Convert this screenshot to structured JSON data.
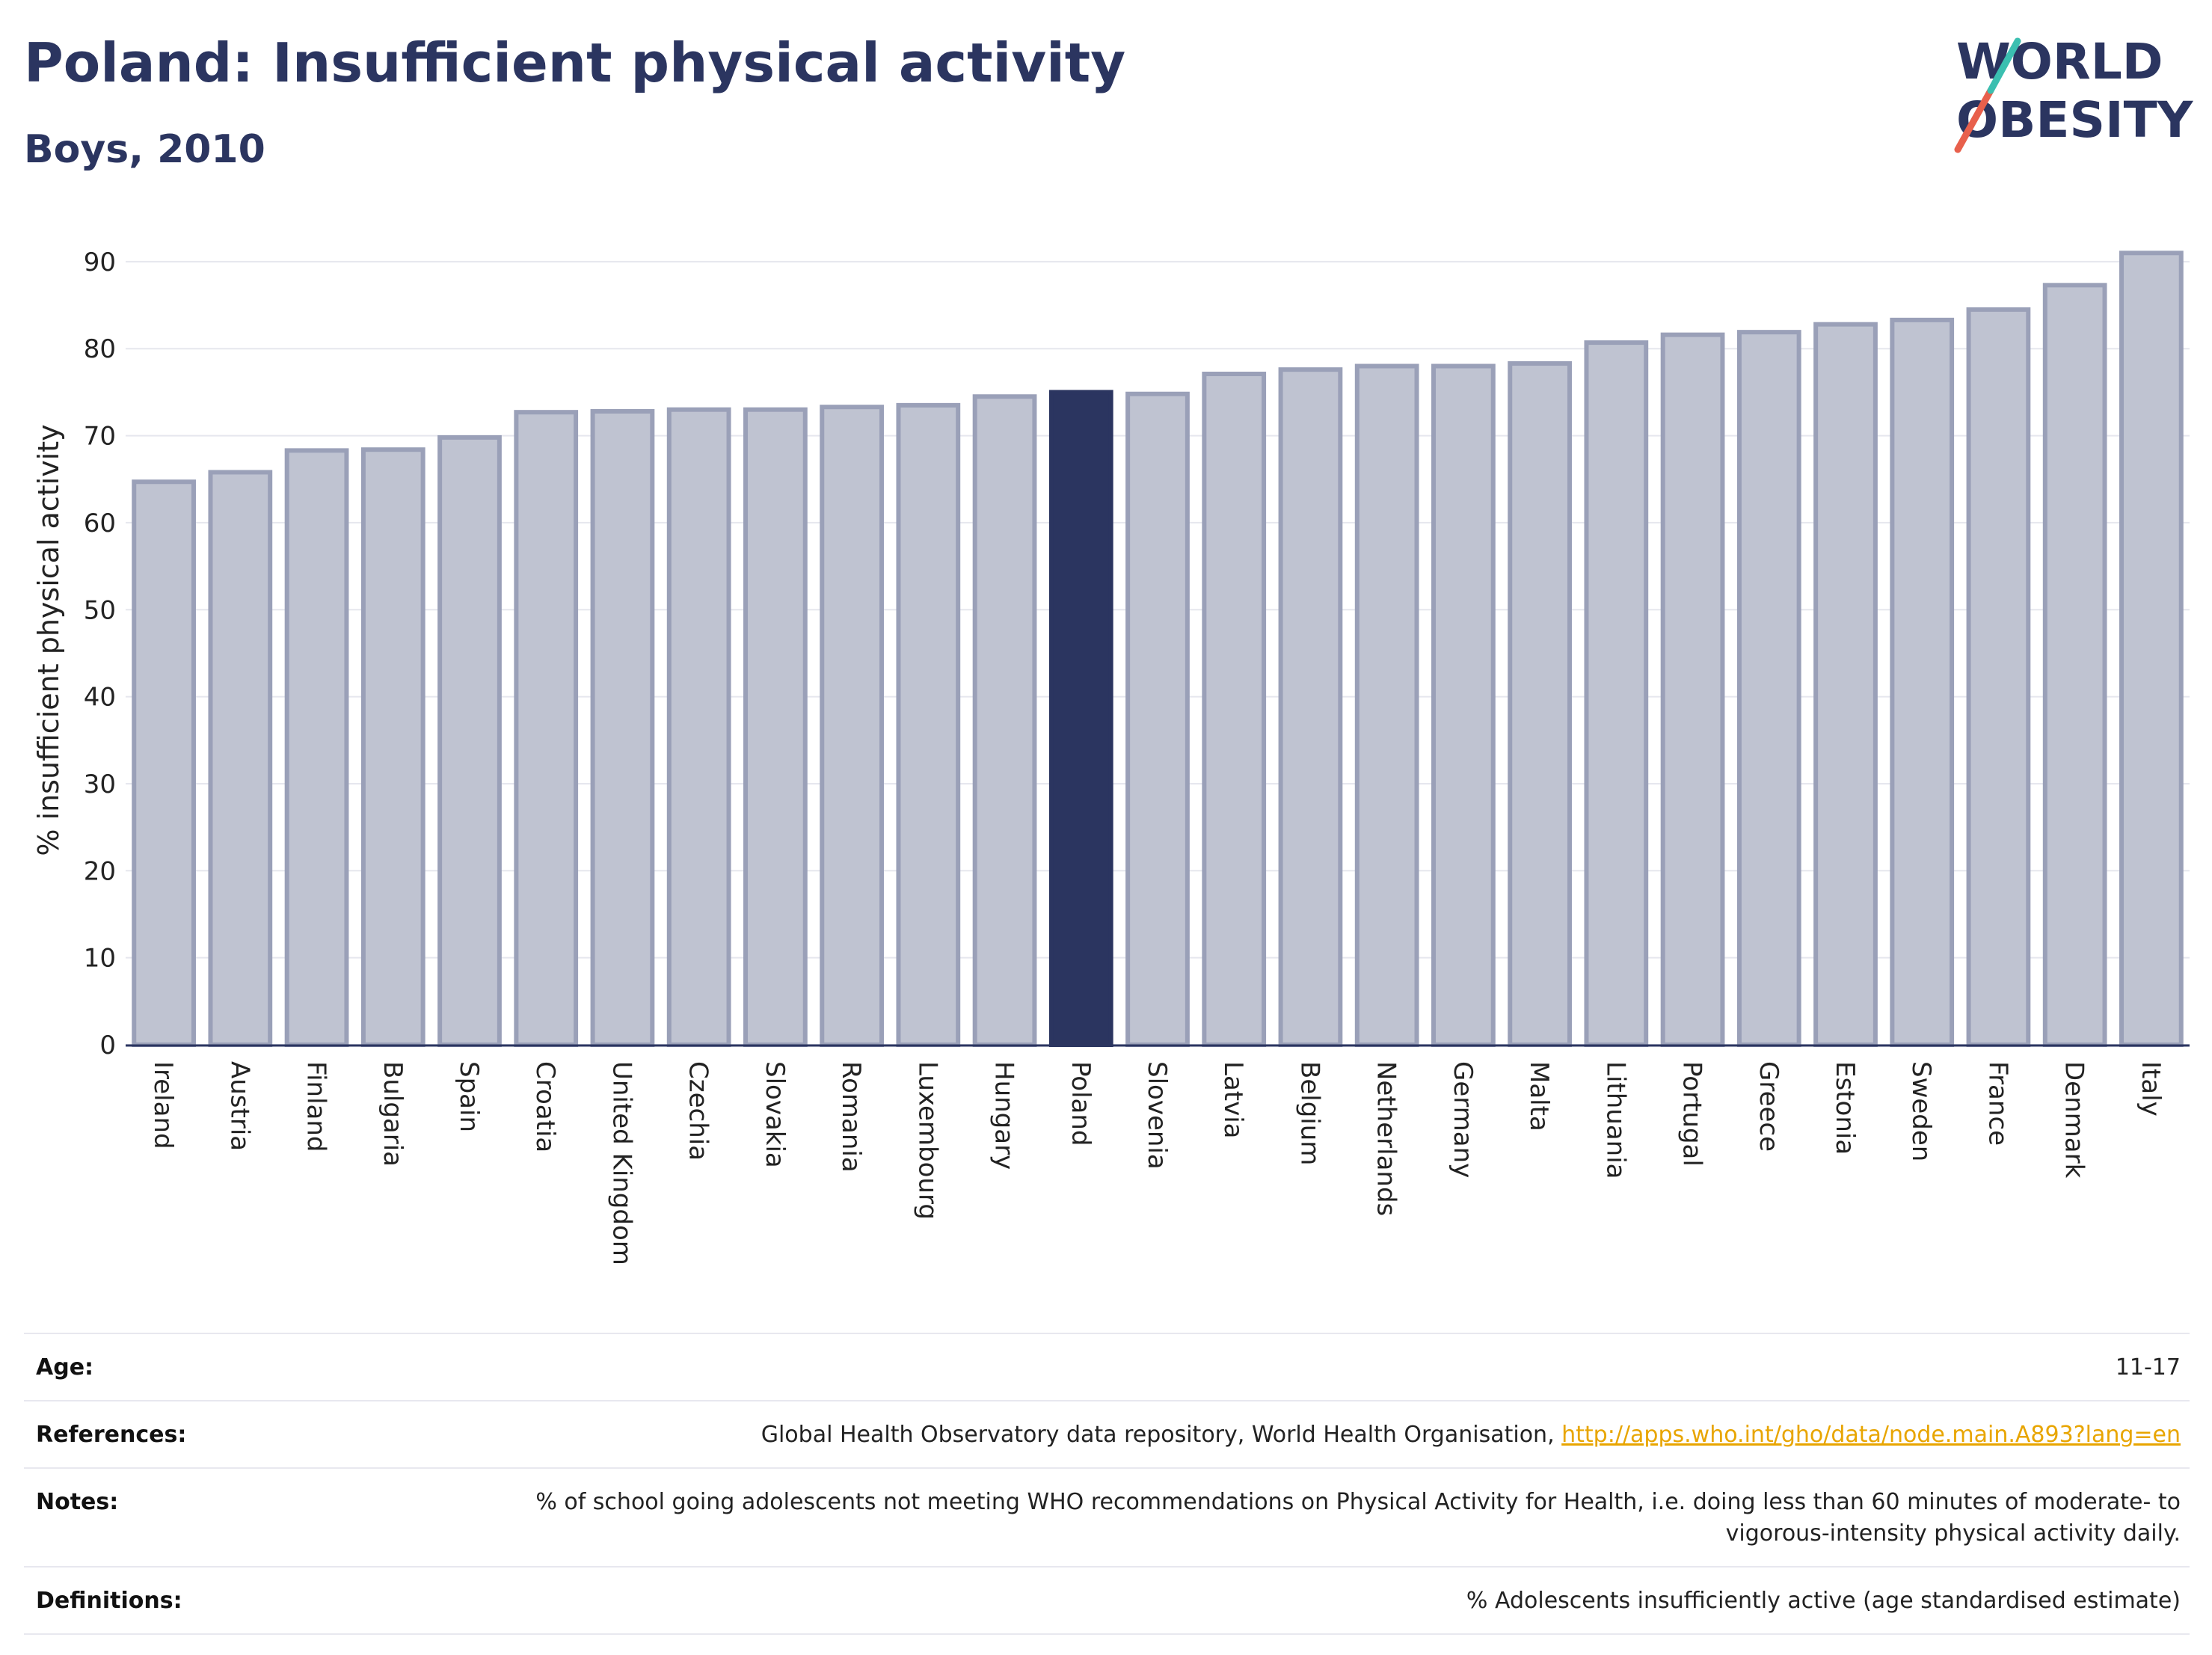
{
  "header": {
    "title": "Poland: Insufficient physical activity",
    "subtitle": "Boys, 2010"
  },
  "logo": {
    "line1": "WORLD",
    "line2": "OBESITY",
    "colors": {
      "text": "#2b3560",
      "slash_red": "#e8604c",
      "slash_teal": "#3bbfb0"
    }
  },
  "chart_data": {
    "type": "bar",
    "ylabel": "% insufficient physical activity",
    "xlabel": "",
    "ylim": [
      0,
      93
    ],
    "yticks": [
      0,
      10,
      20,
      30,
      40,
      50,
      60,
      70,
      80,
      90
    ],
    "grid": true,
    "highlight": "Poland",
    "colors": {
      "bar": "#bfc3d1",
      "bar_edge": "#9aa0b8",
      "highlight": "#2b3560"
    },
    "categories": [
      "Ireland",
      "Austria",
      "Finland",
      "Bulgaria",
      "Spain",
      "Croatia",
      "United Kingdom",
      "Czechia",
      "Slovakia",
      "Romania",
      "Luxembourg",
      "Hungary",
      "Poland",
      "Slovenia",
      "Latvia",
      "Belgium",
      "Netherlands",
      "Germany",
      "Malta",
      "Lithuania",
      "Portugal",
      "Greece",
      "Estonia",
      "Sweden",
      "France",
      "Denmark",
      "Italy"
    ],
    "values": [
      64.7,
      65.8,
      68.3,
      68.4,
      69.8,
      72.7,
      72.8,
      73.0,
      73.0,
      73.3,
      73.5,
      74.5,
      75.0,
      74.8,
      77.1,
      77.6,
      78.0,
      78.0,
      78.3,
      80.7,
      81.6,
      81.9,
      82.8,
      83.3,
      84.5,
      87.3,
      91.0
    ]
  },
  "info": {
    "age_label": "Age:",
    "age_value": "11-17",
    "references_label": "References:",
    "references_text": "Global Health Observatory data repository, World Health Organisation, ",
    "references_link": "http://apps.who.int/gho/data/node.main.A893?lang=en",
    "notes_label": "Notes:",
    "notes_text": "% of school going adolescents not meeting WHO recommendations on Physical Activity for Health, i.e. doing less than 60 minutes of moderate- to vigorous-intensity physical activity daily.",
    "definitions_label": "Definitions:",
    "definitions_text": "% Adolescents insufficiently active (age standardised estimate)"
  }
}
